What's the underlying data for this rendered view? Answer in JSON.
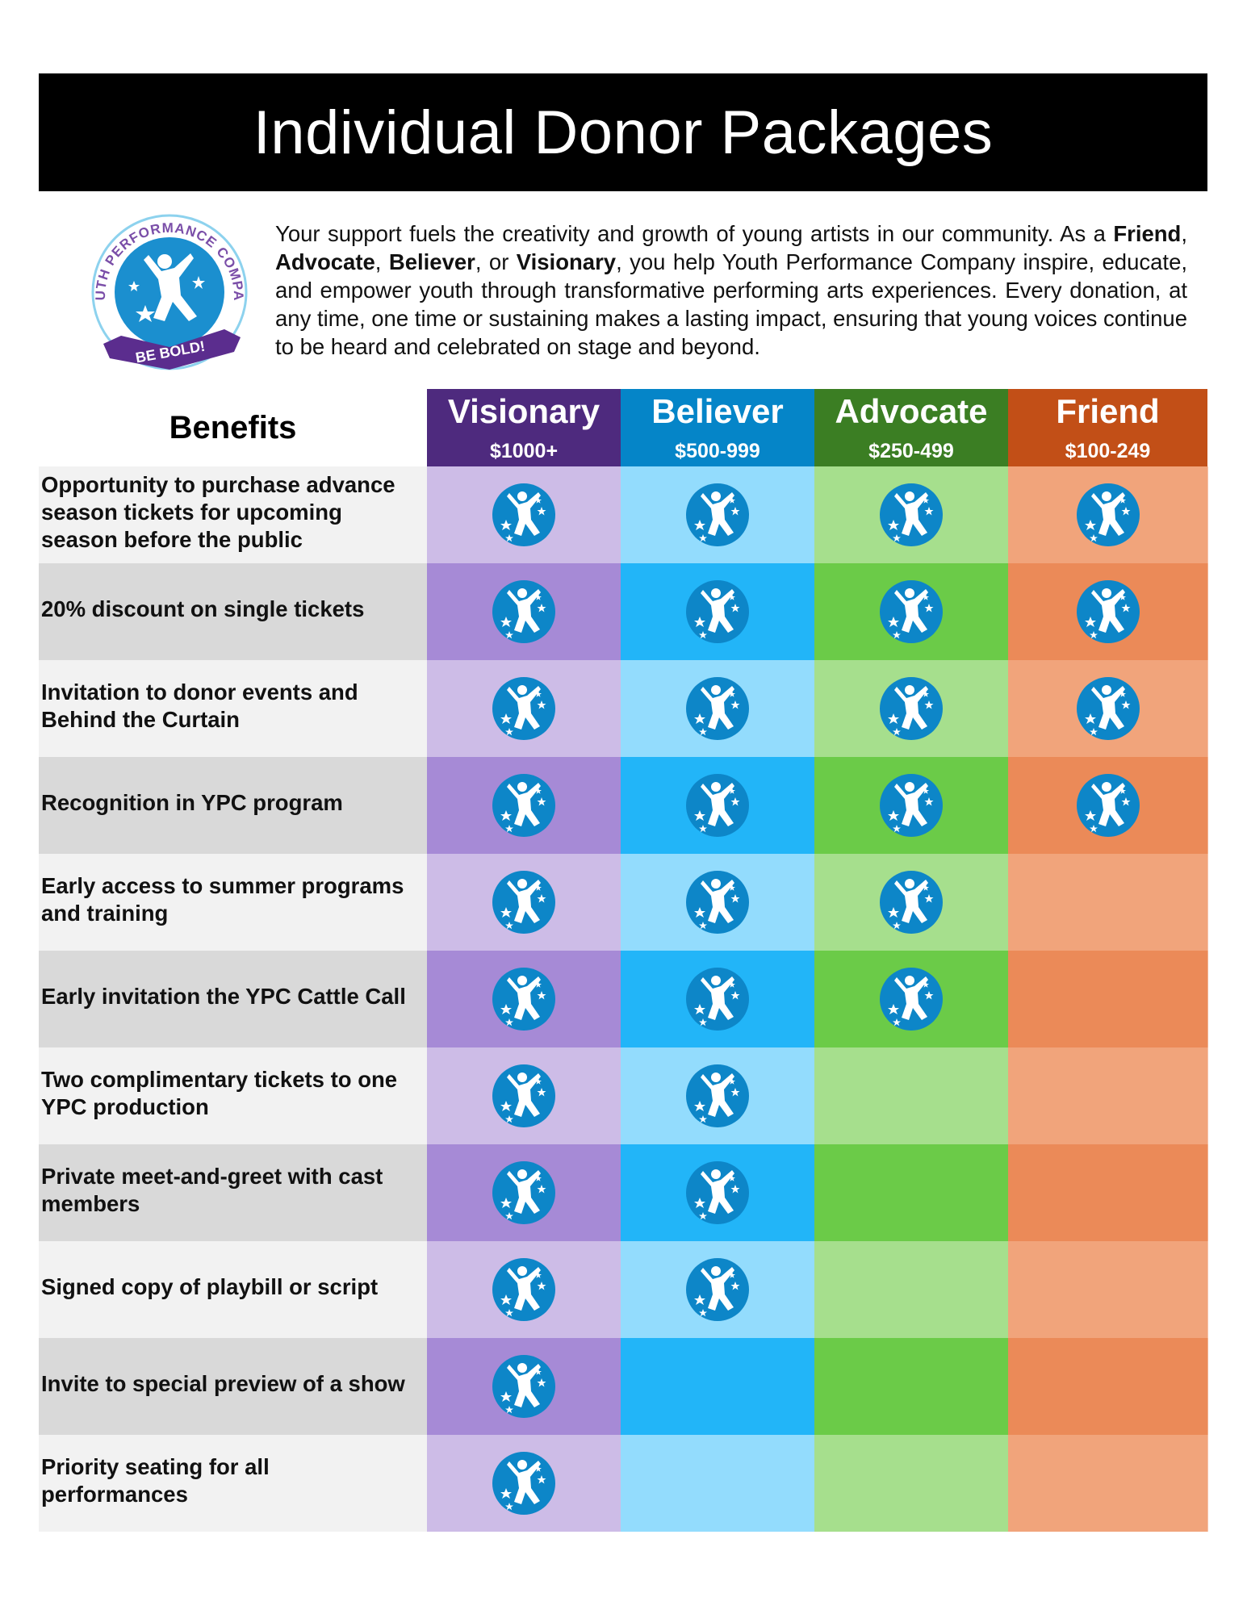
{
  "title": "Individual Donor Packages",
  "logo": {
    "arc_text": "YOUTH PERFORMANCE COMPANY",
    "banner_text": "BE BOLD!"
  },
  "intro": {
    "p1": "Your support fuels the creativity and growth of young artists in our community. As a ",
    "t_friend": "Friend",
    "sep1": ", ",
    "t_advocate": "Advocate",
    "sep2": ", ",
    "t_believer": "Believer",
    "sep3": ", or ",
    "t_visionary": "Visionary",
    "p2": ", you help Youth Performance Company inspire, educate, and empower youth through transformative performing arts experiences. Every donation, at any time, one time or sustaining makes a lasting impact, ensuring that young voices continue to be heard and celebrated on stage and beyond."
  },
  "table": {
    "benefits_label": "Benefits",
    "tiers": [
      {
        "name": "Visionary",
        "range": "$1000+",
        "header_color": "#4e2a7e",
        "light": "#cdbce7",
        "dark": "#a68ad6"
      },
      {
        "name": "Believer",
        "range": "$500-999",
        "header_color": "#0585c8",
        "light": "#93dcfd",
        "dark": "#22b5f8"
      },
      {
        "name": "Advocate",
        "range": "$250-499",
        "header_color": "#3b7e23",
        "light": "#a6df8d",
        "dark": "#6bcb48"
      },
      {
        "name": "Friend",
        "range": "$100-249",
        "header_color": "#c24f17",
        "light": "#f1a47b",
        "dark": "#eb8a58"
      }
    ],
    "rows": [
      {
        "benefit": "Opportunity to purchase advance season tickets for upcoming season before the public",
        "tiers": [
          true,
          true,
          true,
          true
        ]
      },
      {
        "benefit": "20% discount on single tickets",
        "tiers": [
          true,
          true,
          true,
          true
        ]
      },
      {
        "benefit": "Invitation to donor events and Behind the Curtain",
        "tiers": [
          true,
          true,
          true,
          true
        ]
      },
      {
        "benefit": "Recognition in YPC program",
        "tiers": [
          true,
          true,
          true,
          true
        ]
      },
      {
        "benefit": "Early access to summer programs and training",
        "tiers": [
          true,
          true,
          true,
          false
        ]
      },
      {
        "benefit": "Early invitation the YPC Cattle Call",
        "tiers": [
          true,
          true,
          true,
          false
        ]
      },
      {
        "benefit": "Two complimentary tickets to one YPC production",
        "tiers": [
          true,
          true,
          false,
          false
        ]
      },
      {
        "benefit": "Private meet-and-greet with cast members",
        "tiers": [
          true,
          true,
          false,
          false
        ]
      },
      {
        "benefit": "Signed copy of playbill or script",
        "tiers": [
          true,
          true,
          false,
          false
        ]
      },
      {
        "benefit": "Invite to special preview of a show",
        "tiers": [
          true,
          false,
          false,
          false
        ]
      },
      {
        "benefit": "Priority seating for all performances",
        "tiers": [
          true,
          false,
          false,
          false
        ]
      }
    ],
    "badge_icon": "jumping-figure-stars-icon",
    "benefit_light_bg": "#f2f2f2",
    "benefit_dark_bg": "#d9d9d9",
    "badge_color": "#0d86c8"
  }
}
